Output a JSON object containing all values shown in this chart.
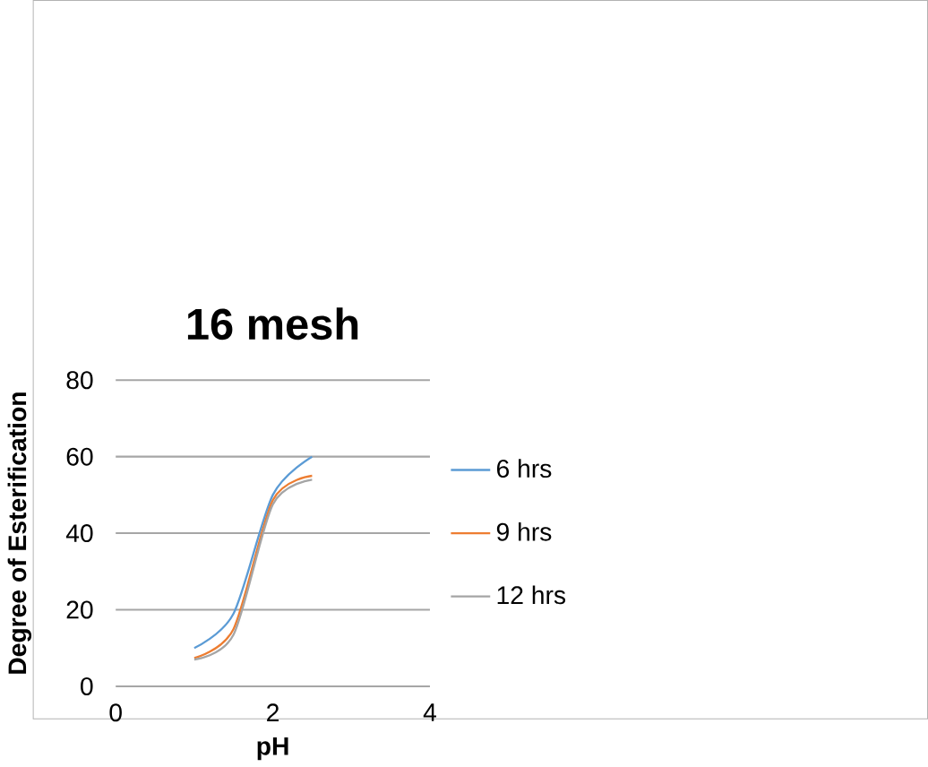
{
  "chart_data": {
    "type": "line",
    "title": "16 mesh",
    "xlabel": "pH",
    "ylabel": "Degree of Esterification",
    "xlim": [
      0,
      4
    ],
    "xticks": [
      0,
      2,
      4
    ],
    "ylim": [
      0,
      80
    ],
    "yticks": [
      0,
      20,
      40,
      60,
      80
    ],
    "grid": "y",
    "legend": "right",
    "series": [
      {
        "name": "6 hrs",
        "color": "#5b9bd5",
        "x": [
          1,
          1.5,
          2,
          2.5
        ],
        "values": [
          10,
          19,
          50,
          60
        ]
      },
      {
        "name": "9 hrs",
        "color": "#ed7d31",
        "x": [
          1,
          1.5,
          2,
          2.5
        ],
        "values": [
          7.4,
          15,
          48.6,
          55
        ]
      },
      {
        "name": "12 hrs",
        "color": "#a5a5a5",
        "x": [
          1,
          1.5,
          2,
          2.5
        ],
        "values": [
          7,
          13.5,
          47.5,
          54
        ]
      }
    ]
  }
}
